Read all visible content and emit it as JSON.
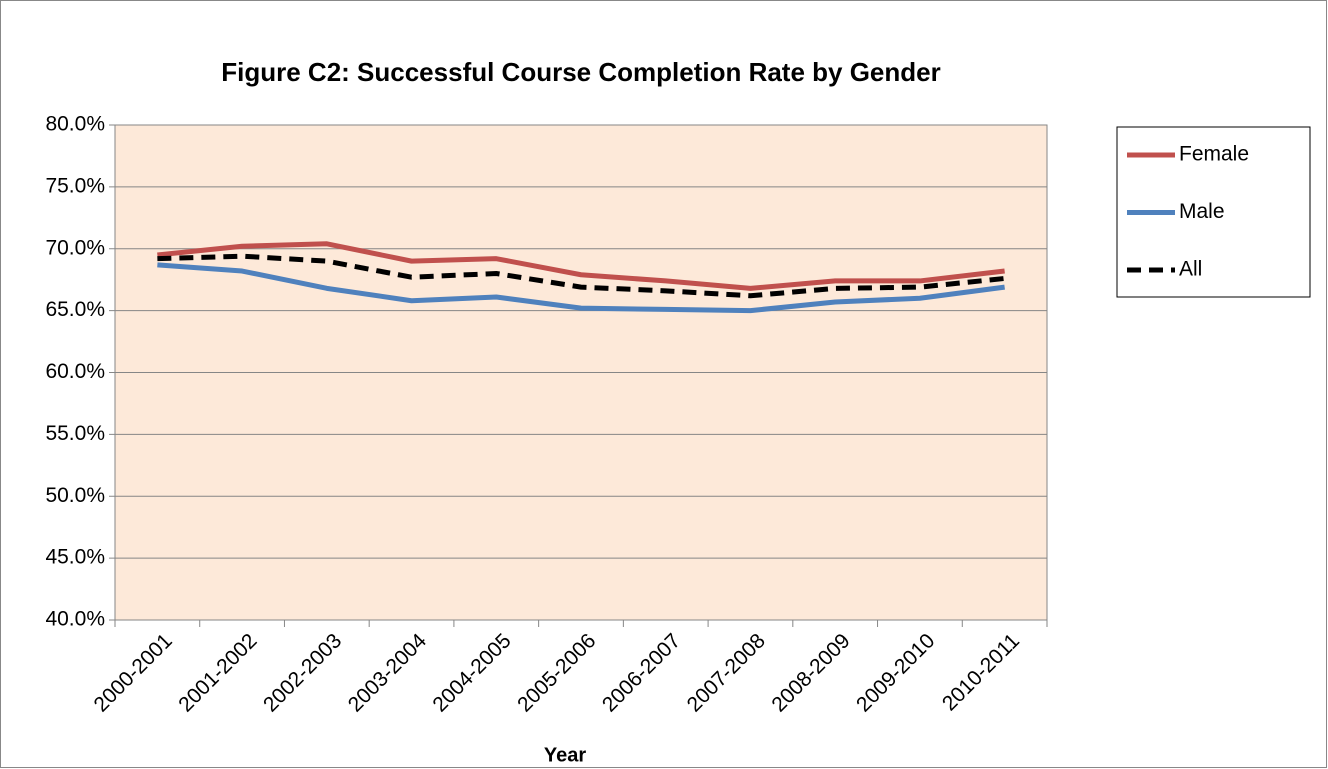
{
  "chart_data": {
    "type": "line",
    "title": "Figure C2: Successful Course Completion Rate by Gender",
    "x_label": "Year",
    "categories": [
      "2000-2001",
      "2001-2002",
      "2002-2003",
      "2003-2004",
      "2004-2005",
      "2005-2006",
      "2006-2007",
      "2007-2008",
      "2008-2009",
      "2009-2010",
      "2010-2011"
    ],
    "series": [
      {
        "name": "Female",
        "color": "#c0504d",
        "style": "solid",
        "values": [
          69.5,
          70.2,
          70.4,
          69.0,
          69.2,
          67.9,
          67.4,
          66.8,
          67.4,
          67.4,
          68.2
        ]
      },
      {
        "name": "Male",
        "color": "#4f81bd",
        "style": "solid",
        "values": [
          68.7,
          68.2,
          66.8,
          65.8,
          66.1,
          65.2,
          65.1,
          65.0,
          65.7,
          66.0,
          66.9
        ]
      },
      {
        "name": "All",
        "color": "#000000",
        "style": "dashed",
        "values": [
          69.2,
          69.4,
          69.0,
          67.7,
          68.0,
          66.9,
          66.6,
          66.2,
          66.8,
          66.9,
          67.6
        ]
      }
    ],
    "ylim": [
      40,
      80
    ],
    "yticks": [
      {
        "value": 40,
        "label": "40.0%"
      },
      {
        "value": 45,
        "label": "45.0%"
      },
      {
        "value": 50,
        "label": "50.0%"
      },
      {
        "value": 55,
        "label": "55.0%"
      },
      {
        "value": 60,
        "label": "60.0%"
      },
      {
        "value": 65,
        "label": "65.0%"
      },
      {
        "value": 70,
        "label": "70.0%"
      },
      {
        "value": 75,
        "label": "75.0%"
      },
      {
        "value": 80,
        "label": "80.0%"
      }
    ],
    "grid": true,
    "plot_background": "#fde9d9",
    "legend": "right"
  }
}
